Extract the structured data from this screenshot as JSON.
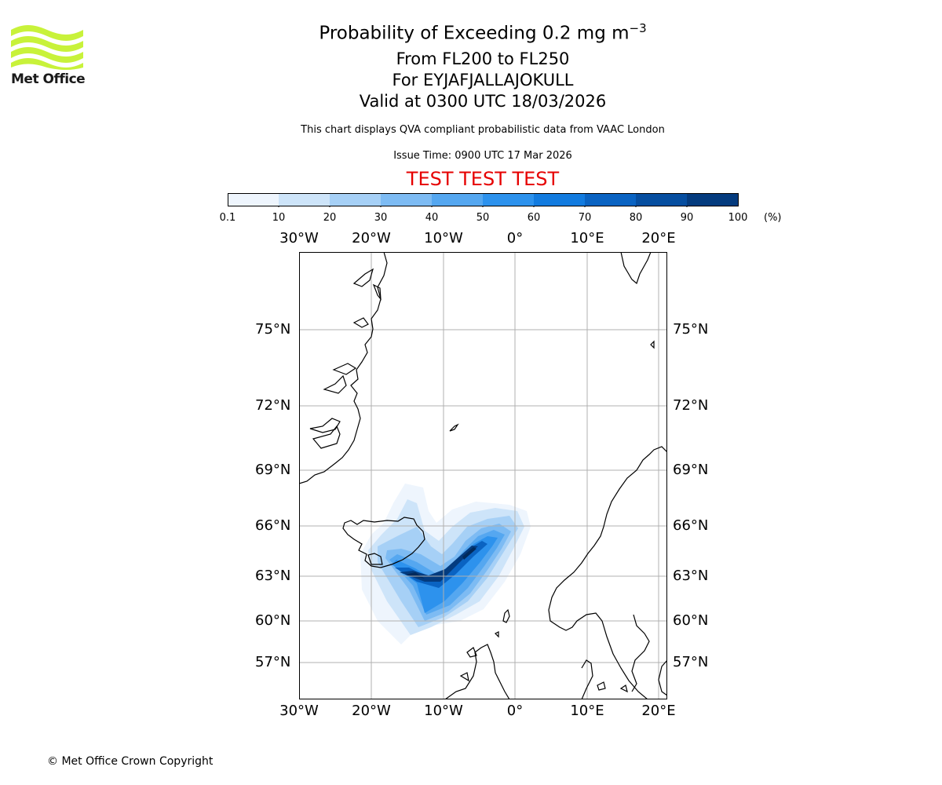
{
  "header": {
    "title_main": "Probability of Exceeding 0.2 mg m",
    "title_exponent": "−3",
    "levels": "From FL200 to FL250",
    "volcano": "For EYJAFJALLAJOKULL",
    "valid": "Valid at 0300 UTC 18/03/2026",
    "description": "This chart displays QVA compliant probabilistic data from VAAC London",
    "issue_time": "Issue Time: 0900 UTC 17 Mar 2026",
    "test_banner": "TEST TEST TEST"
  },
  "logo": {
    "text": "Met Office",
    "color": "#c8f23a"
  },
  "colorbar": {
    "ticks": [
      "0.1",
      "10",
      "20",
      "30",
      "40",
      "50",
      "60",
      "70",
      "80",
      "90",
      "100"
    ],
    "unit": "(%)",
    "colors": [
      "#eef5fd",
      "#cde4f9",
      "#a6d0f6",
      "#7dbbf3",
      "#55a7f0",
      "#2d92ed",
      "#127bdf",
      "#0a63c2",
      "#064ea0",
      "#043b7e",
      "#022a5c"
    ]
  },
  "map": {
    "lon_labels": [
      "30°W",
      "20°W",
      "10°W",
      "0°",
      "10°E",
      "20°E"
    ],
    "lat_labels": [
      "75°N",
      "72°N",
      "69°N",
      "66°N",
      "63°N",
      "60°N",
      "57°N"
    ],
    "grid_color": "#b0b0b0",
    "coast_color": "#000000"
  },
  "footer": {
    "copyright": "© Met Office Crown Copyright"
  }
}
